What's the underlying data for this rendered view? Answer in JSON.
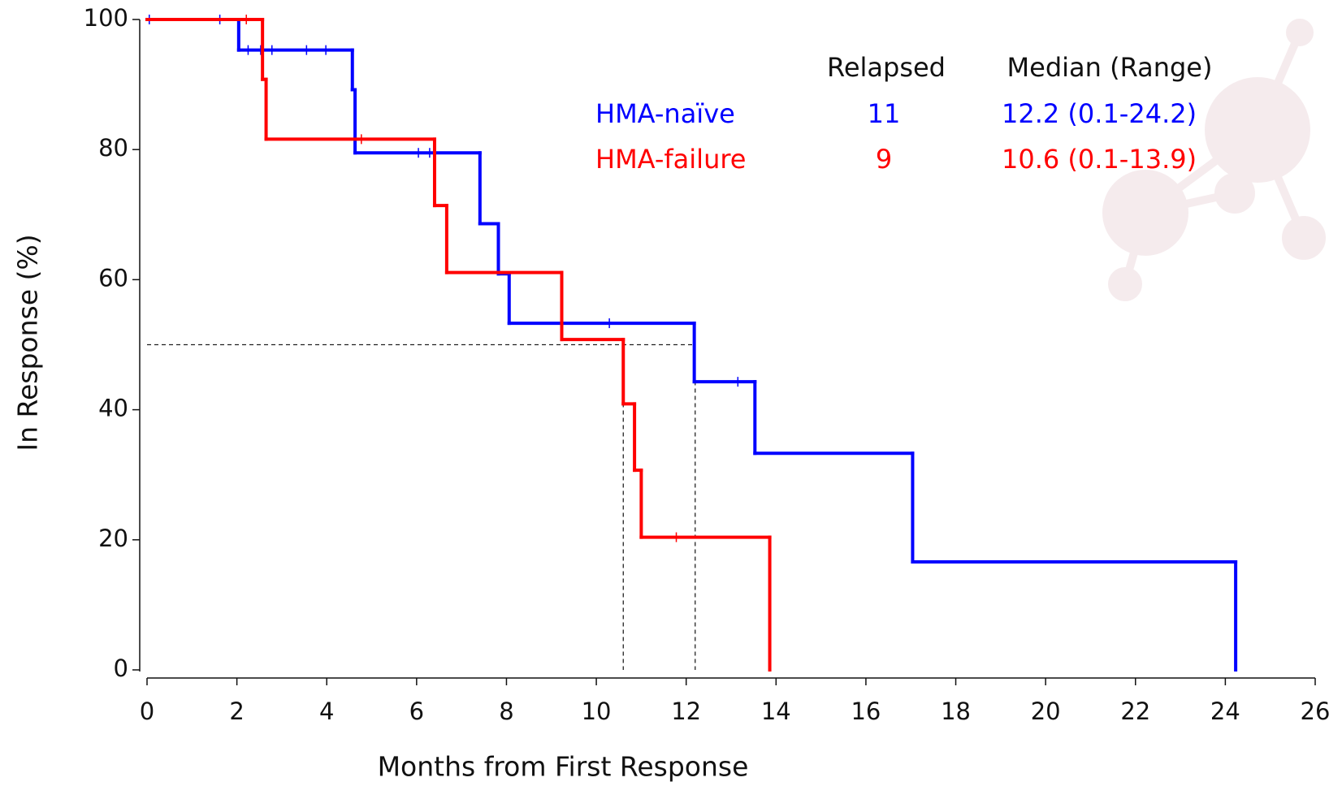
{
  "chart_data": {
    "type": "step",
    "xlabel": "Months from First Response",
    "ylabel": "In Response (%)",
    "xlim": [
      0,
      26
    ],
    "xticks": [
      0,
      2,
      4,
      6,
      8,
      10,
      12,
      14,
      16,
      18,
      20,
      22,
      24,
      26
    ],
    "ylim": [
      0,
      100
    ],
    "yticks": [
      0,
      20,
      40,
      60,
      80,
      100
    ],
    "reference_lines": {
      "y": 50,
      "x": [
        10.6,
        12.2
      ]
    },
    "legend_headers": [
      "Relapsed",
      "Median (Range)"
    ],
    "series": [
      {
        "name": "HMA-naïve",
        "color": "#0000ff",
        "relapsed": 11,
        "median_range": "12.2 (0.1-24.2)",
        "x": [
          0,
          2.04,
          4.57,
          4.63,
          7.41,
          7.82,
          8.06,
          12.18,
          13.53,
          17.04,
          24.23
        ],
        "values": [
          100,
          95.3,
          89.2,
          79.5,
          68.6,
          60.9,
          53.3,
          44.3,
          33.3,
          16.6,
          0
        ],
        "censored": [
          0.05,
          1.62,
          2.25,
          2.53,
          2.78,
          3.55,
          3.98,
          6.04,
          6.29,
          10.29,
          13.15
        ]
      },
      {
        "name": "HMA-failure",
        "color": "#ff0000",
        "relapsed": 9,
        "median_range": "10.6 (0.1-13.9)",
        "x": [
          0,
          2.57,
          2.65,
          6.4,
          6.67,
          9.23,
          10.6,
          10.85,
          11.0,
          13.86
        ],
        "values": [
          100,
          90.8,
          81.6,
          71.4,
          61.1,
          50.8,
          40.9,
          30.7,
          20.4,
          0
        ],
        "censored": [
          2.21,
          4.77,
          11.78
        ]
      }
    ]
  }
}
